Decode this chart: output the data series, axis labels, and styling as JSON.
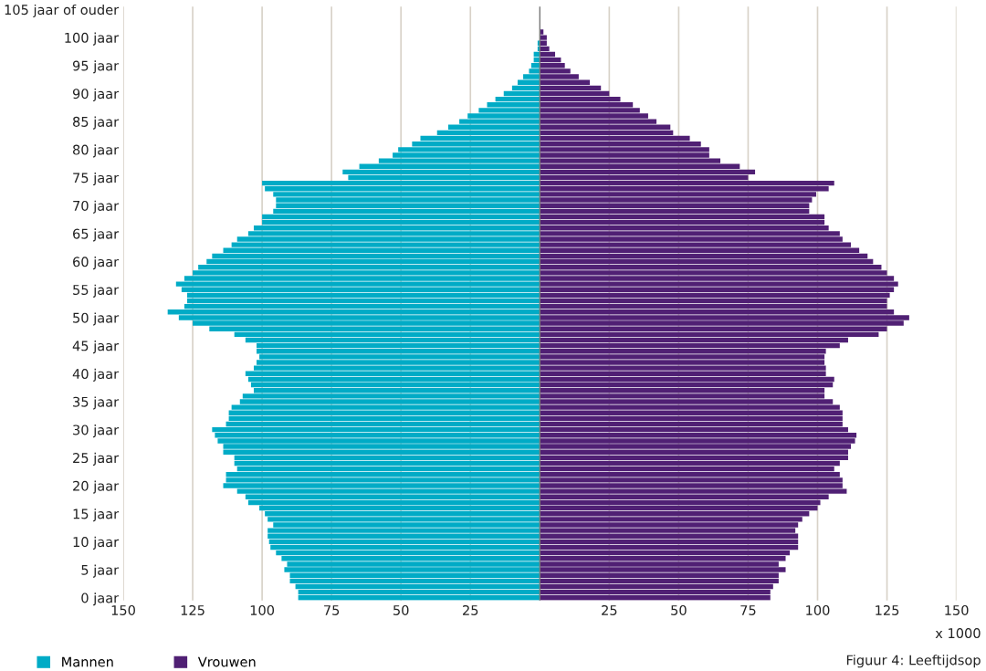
{
  "chart_data": {
    "type": "bar",
    "orientation": "horizontal",
    "categories": [
      "105 jaar of ouder",
      null,
      null,
      null,
      null,
      "100 jaar",
      null,
      null,
      null,
      null,
      "95 jaar",
      null,
      null,
      null,
      null,
      "90 jaar",
      null,
      null,
      null,
      null,
      "85 jaar",
      null,
      null,
      null,
      null,
      "80 jaar",
      null,
      null,
      null,
      null,
      "75 jaar",
      null,
      null,
      null,
      null,
      "70 jaar",
      null,
      null,
      null,
      null,
      "65 jaar",
      null,
      null,
      null,
      null,
      "60 jaar",
      null,
      null,
      null,
      null,
      "55 jaar",
      null,
      null,
      null,
      null,
      "50 jaar",
      null,
      null,
      null,
      null,
      "45 jaar",
      null,
      null,
      null,
      null,
      "40 jaar",
      null,
      null,
      null,
      null,
      "35 jaar",
      null,
      null,
      null,
      null,
      "30 jaar",
      null,
      null,
      null,
      null,
      "25 jaar",
      null,
      null,
      null,
      null,
      "20 jaar",
      null,
      null,
      null,
      null,
      "15 jaar",
      null,
      null,
      null,
      null,
      "10 jaar",
      null,
      null,
      null,
      null,
      "5 jaar",
      null,
      null,
      null,
      null,
      "0 jaar"
    ],
    "series": [
      {
        "name": "Mannen",
        "color": "#00abc6",
        "values": [
          0,
          0,
          0,
          0,
          0,
          0,
          -0.8,
          -0.8,
          -2.2,
          -2.2,
          -3.1,
          -3.9,
          -6,
          -8,
          -10,
          -13,
          -16,
          -19,
          -22,
          -26,
          -29,
          -33,
          -37,
          -43,
          -46,
          -51,
          -53,
          -58,
          -65,
          -71,
          -69,
          -100,
          -99,
          -96,
          -95,
          -95,
          -96,
          -100,
          -100,
          -103,
          -105,
          -109,
          -111,
          -114,
          -118,
          -120,
          -123,
          -125,
          -128,
          -131,
          -129,
          -127,
          -127,
          -128,
          -134,
          -130,
          -125,
          -119,
          -110,
          -106,
          -102,
          -102,
          -101,
          -102,
          -103,
          -106,
          -105,
          -104,
          -103,
          -107,
          -108,
          -111,
          -112,
          -112,
          -113,
          -118,
          -117,
          -116,
          -114,
          -114,
          -110,
          -110,
          -109,
          -113,
          -113,
          -114,
          -109,
          -106,
          -105,
          -101,
          -99,
          -98,
          -96,
          -98,
          -98,
          -97.5,
          -97,
          -95,
          -93,
          -91,
          -92,
          -90,
          -90,
          -88,
          -87,
          -87
        ]
      },
      {
        "name": "Vrouwen",
        "color": "#502074",
        "values": [
          0,
          0,
          0,
          0,
          1.3,
          2.5,
          2.5,
          3.4,
          5.5,
          7.6,
          9,
          11,
          14,
          18,
          22,
          25,
          29,
          33.5,
          36,
          39,
          42,
          47,
          48,
          54,
          58,
          61,
          61,
          65,
          72,
          77.5,
          75,
          106,
          104,
          99.5,
          98,
          97,
          97,
          102.5,
          102.5,
          104,
          108,
          109,
          112,
          115,
          118,
          120,
          123,
          125,
          127.5,
          129,
          127.5,
          126,
          125,
          125,
          127.5,
          133,
          131,
          125,
          122,
          111,
          108,
          103,
          102.5,
          102.5,
          103,
          103,
          106,
          105.5,
          102.5,
          102.5,
          105.5,
          108,
          109,
          109,
          109,
          111,
          114,
          113.5,
          112,
          111,
          111,
          108,
          106,
          108,
          109,
          109,
          110.5,
          104,
          101,
          100,
          97,
          94.5,
          93,
          92,
          93,
          93,
          93,
          90,
          88.5,
          86,
          88.5,
          86,
          86,
          84,
          83,
          83
        ]
      }
    ],
    "xlim": [
      -150,
      150
    ],
    "xticks": [
      {
        "value": -150,
        "label": "150"
      },
      {
        "value": -125,
        "label": "125"
      },
      {
        "value": -100,
        "label": "100"
      },
      {
        "value": -75,
        "label": "75"
      },
      {
        "value": -50,
        "label": "50"
      },
      {
        "value": -25,
        "label": "25"
      },
      25,
      50,
      75,
      100,
      125,
      150
    ],
    "grid": "x",
    "legend": "bottom left",
    "stacked": true,
    "annotations": [
      "x 1000",
      "Figuur 4: Leeftijdsop"
    ]
  }
}
